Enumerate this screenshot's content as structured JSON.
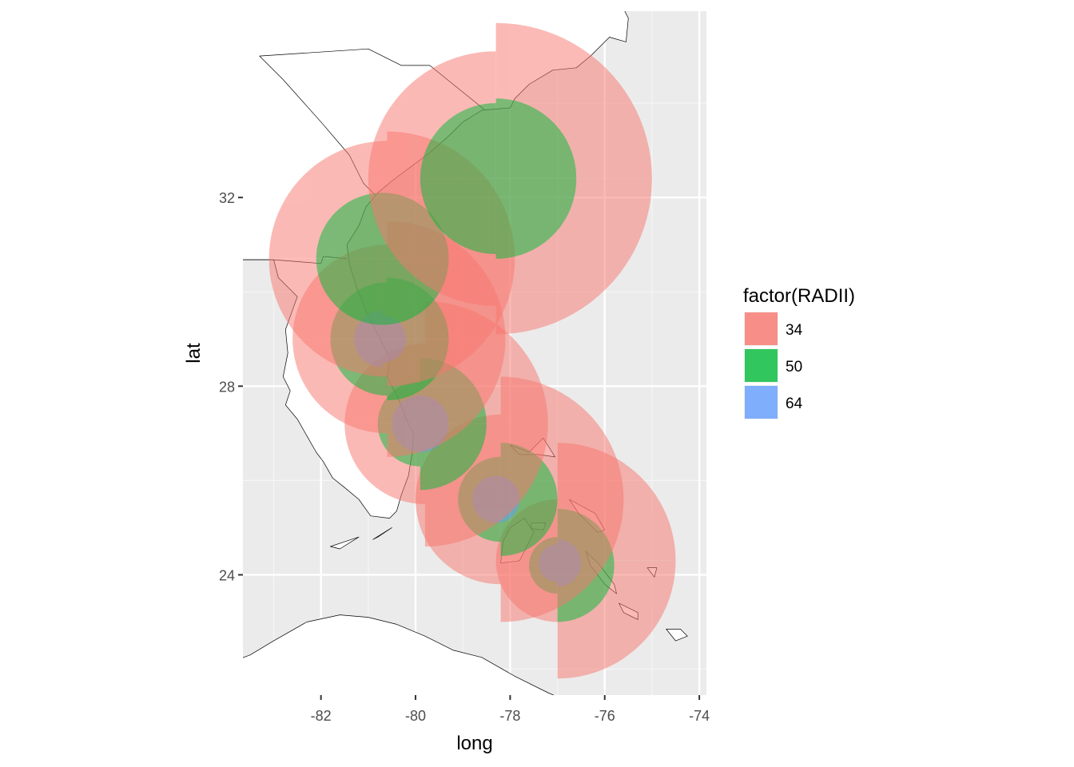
{
  "chart_data": {
    "type": "map",
    "xlabel": "long",
    "ylabel": "lat",
    "xlim": [
      -83.65,
      -73.85
    ],
    "ylim": [
      21.45,
      35.95
    ],
    "x_ticks": [
      -82,
      -80,
      -78,
      -76,
      -74
    ],
    "x_tick_labels": [
      "-82",
      "-80",
      "-78",
      "-76",
      "-74"
    ],
    "y_ticks": [
      24,
      28,
      32
    ],
    "y_tick_labels": [
      "24",
      "28",
      "32"
    ],
    "x_minor": [
      -83,
      -81,
      -79,
      -77,
      -75
    ],
    "y_minor": [
      22,
      26,
      30,
      34
    ],
    "grid": true,
    "legend": {
      "title": "factor(RADII)",
      "position": "right",
      "entries": [
        {
          "label": "34",
          "color": "#F8766D"
        },
        {
          "label": "50",
          "color": "#00BA38"
        },
        {
          "label": "64",
          "color": "#619CFF"
        }
      ]
    },
    "fill_alpha": 0.5,
    "wind_radii": [
      {
        "radius": "34",
        "center": [
          -77.0,
          24.3
        ],
        "ne": 2.5,
        "se": 2.5,
        "sw": 1.3,
        "nw": 1.3
      },
      {
        "radius": "50",
        "center": [
          -77.0,
          24.2
        ],
        "ne": 1.2,
        "se": 1.2,
        "sw": 0.6,
        "nw": 0.6
      },
      {
        "radius": "64",
        "center": [
          -77.0,
          24.25
        ],
        "ne": 0.5,
        "se": 0.5,
        "sw": 0.4,
        "nw": 0.4
      },
      {
        "radius": "34",
        "center": [
          -78.2,
          25.6
        ],
        "ne": 2.6,
        "se": 2.6,
        "sw": 1.8,
        "nw": 1.8
      },
      {
        "radius": "50",
        "center": [
          -78.2,
          25.6
        ],
        "ne": 1.2,
        "se": 1.2,
        "sw": 0.9,
        "nw": 0.9
      },
      {
        "radius": "64",
        "center": [
          -78.3,
          25.6
        ],
        "ne": 0.5,
        "se": 0.5,
        "sw": 0.5,
        "nw": 0.5
      },
      {
        "radius": "34",
        "center": [
          -79.8,
          27.2
        ],
        "ne": 2.6,
        "se": 2.6,
        "sw": 1.7,
        "nw": 1.7
      },
      {
        "radius": "50",
        "center": [
          -79.9,
          27.2
        ],
        "ne": 1.4,
        "se": 1.4,
        "sw": 0.9,
        "nw": 0.9
      },
      {
        "radius": "64",
        "center": [
          -79.9,
          27.2
        ],
        "ne": 0.6,
        "se": 0.6,
        "sw": 0.6,
        "nw": 0.6
      },
      {
        "radius": "34",
        "center": [
          -80.6,
          29.0
        ],
        "ne": 2.5,
        "se": 2.5,
        "sw": 2.0,
        "nw": 2.0
      },
      {
        "radius": "50",
        "center": [
          -80.6,
          29.0
        ],
        "ne": 1.3,
        "se": 1.3,
        "sw": 1.2,
        "nw": 1.2
      },
      {
        "radius": "64",
        "center": [
          -80.7,
          29.0
        ],
        "ne": 0.5,
        "se": 0.5,
        "sw": 0.6,
        "nw": 0.6
      },
      {
        "radius": "34",
        "center": [
          -80.6,
          30.7
        ],
        "ne": 2.7,
        "se": 2.7,
        "sw": 2.5,
        "nw": 2.5
      },
      {
        "radius": "50",
        "center": [
          -80.7,
          30.7
        ],
        "ne": 1.4,
        "se": 1.4,
        "sw": 1.4,
        "nw": 1.4
      },
      {
        "radius": "34",
        "center": [
          -78.3,
          32.4
        ],
        "ne": 3.3,
        "se": 3.3,
        "sw": 2.7,
        "nw": 2.7
      },
      {
        "radius": "50",
        "center": [
          -78.3,
          32.4
        ],
        "ne": 1.7,
        "se": 1.7,
        "sw": 1.6,
        "nw": 1.6
      }
    ]
  }
}
